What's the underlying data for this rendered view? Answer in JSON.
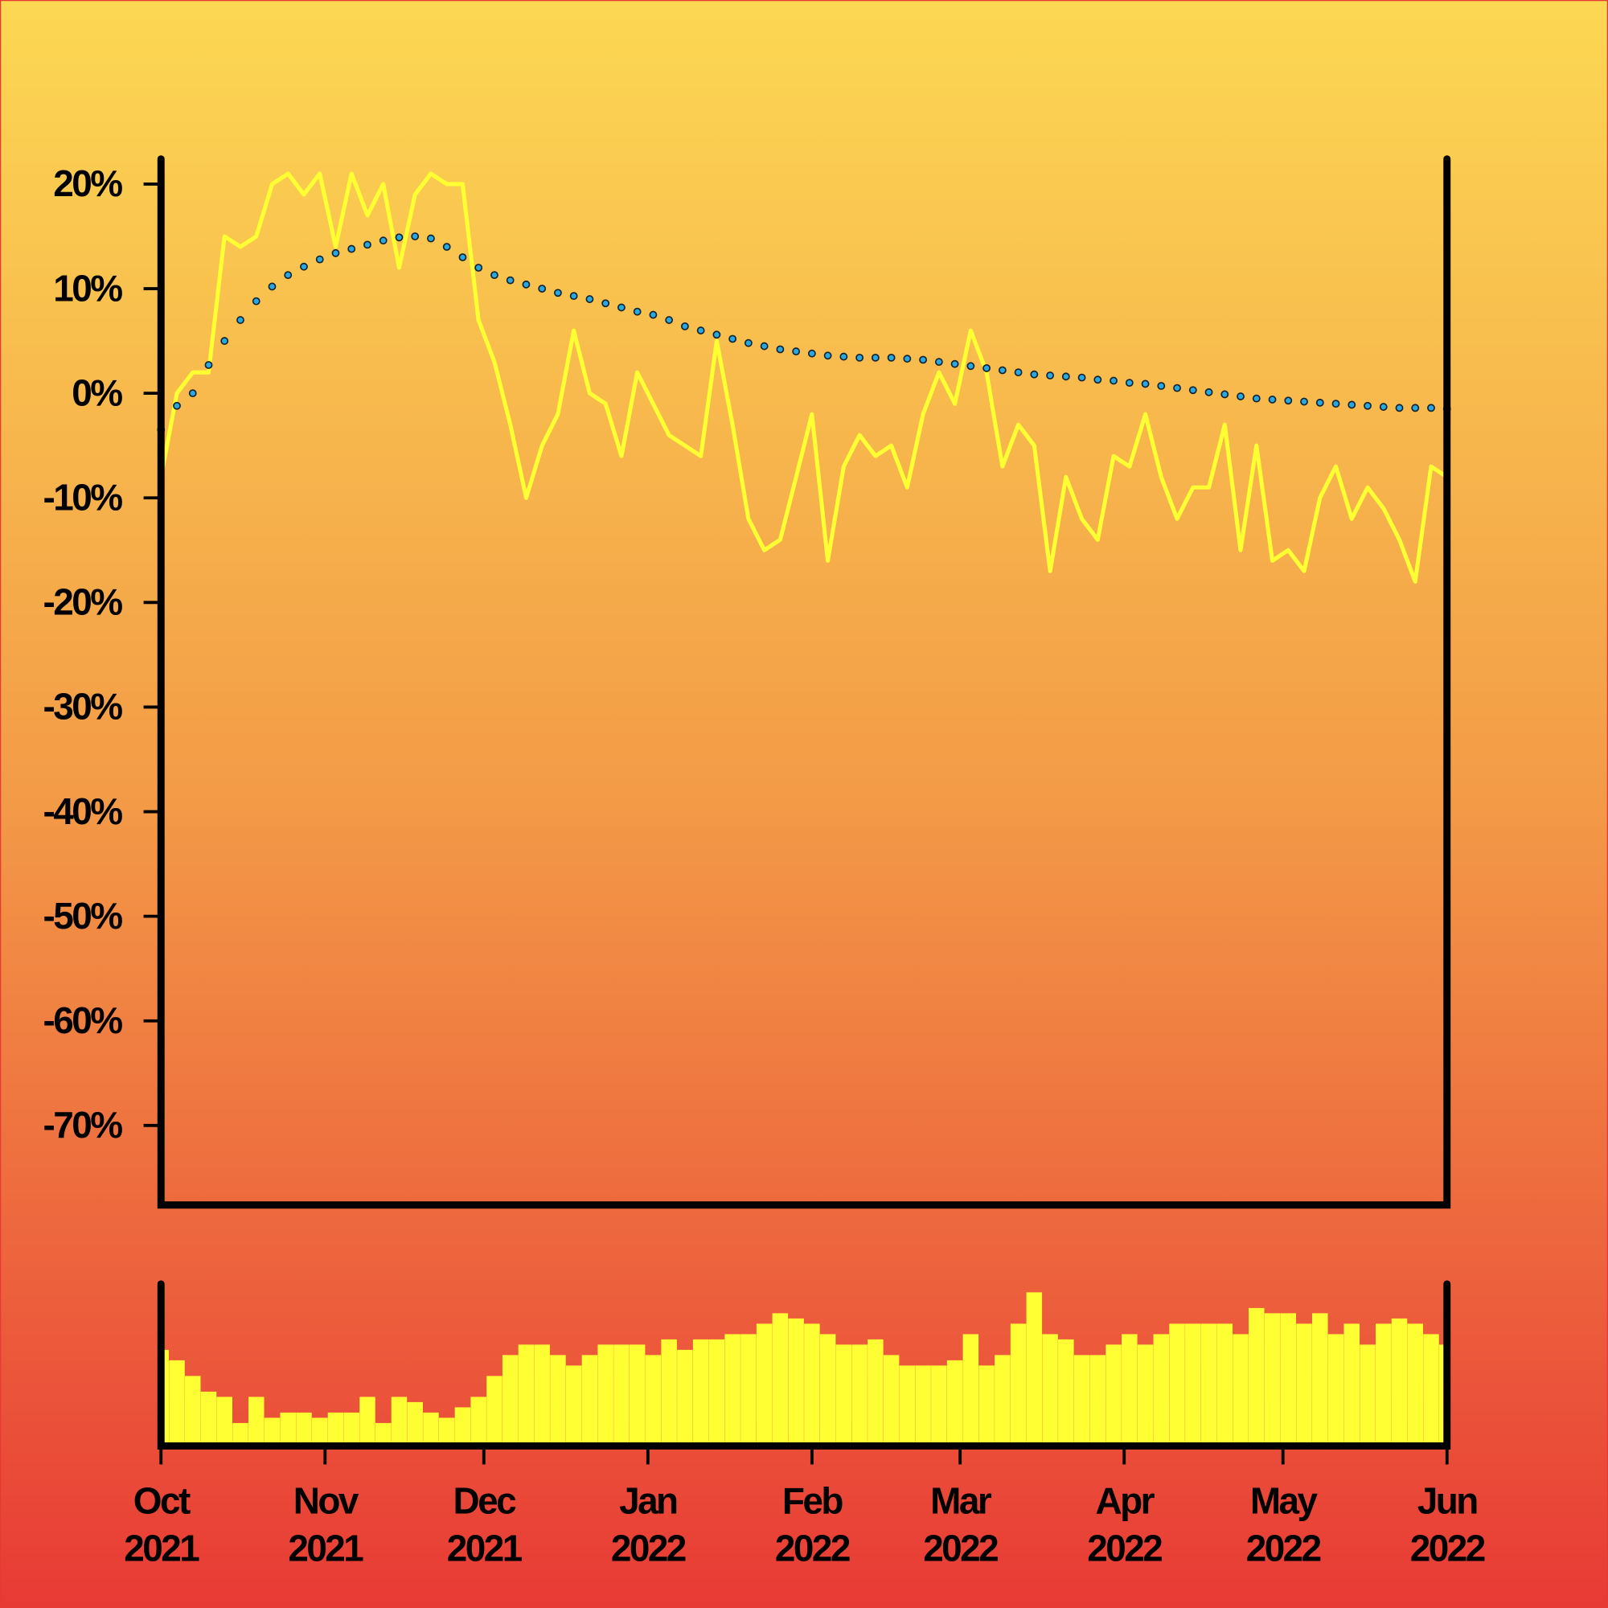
{
  "chart_data": [
    {
      "type": "line",
      "x": [
        0,
        3,
        6,
        9,
        12,
        15,
        18,
        21,
        24,
        27,
        30,
        33,
        36,
        39,
        42,
        45,
        48,
        51,
        54,
        57,
        60,
        63,
        66,
        69,
        72,
        75,
        78,
        81,
        84,
        87,
        90,
        93,
        96,
        99,
        102,
        105,
        108,
        111,
        114,
        117,
        120,
        123,
        126,
        129,
        132,
        135,
        138,
        141,
        144,
        147,
        150,
        153,
        156,
        159,
        162,
        165,
        168,
        171,
        174,
        177,
        180,
        183,
        186,
        189,
        192,
        195,
        198,
        201,
        204,
        207,
        210,
        213,
        216,
        219,
        222,
        225,
        228,
        231,
        234,
        237,
        240,
        243
      ],
      "xlim": [
        0,
        243
      ],
      "xticks": [
        {
          "value": 0,
          "label": "Oct 2021"
        },
        {
          "value": 31,
          "label": "Nov 2021"
        },
        {
          "value": 61,
          "label": "Dec 2021"
        },
        {
          "value": 92,
          "label": "Jan 2022"
        },
        {
          "value": 123,
          "label": "Feb 2022"
        },
        {
          "value": 151,
          "label": "Mar 2022"
        },
        {
          "value": 182,
          "label": "Apr 2022"
        },
        {
          "value": 212,
          "label": "May 2022"
        },
        {
          "value": 243,
          "label": "Jun 2022"
        }
      ],
      "ylim": [
        -77.6,
        22.4
      ],
      "yticks": [
        {
          "value": 20,
          "label": "20%"
        },
        {
          "value": 10,
          "label": "10%"
        },
        {
          "value": 0,
          "label": "0%"
        },
        {
          "value": -10,
          "label": "-10%"
        },
        {
          "value": -20,
          "label": "-20%"
        },
        {
          "value": -30,
          "label": "-30%"
        },
        {
          "value": -40,
          "label": "-40%"
        },
        {
          "value": -50,
          "label": "-50%"
        },
        {
          "value": -60,
          "label": "-60%"
        },
        {
          "value": -70,
          "label": "-70%"
        }
      ],
      "series": [
        {
          "color": "#ffff33",
          "style": "solid",
          "values": [
            -8,
            0,
            2,
            2,
            15,
            14,
            15,
            20,
            21,
            19,
            21,
            14,
            21,
            17,
            20,
            12,
            19,
            21,
            20,
            20,
            7,
            3,
            -3,
            -10,
            -5,
            -2,
            6,
            0,
            -1,
            -6,
            2,
            -1,
            -4,
            -5,
            -6,
            5,
            -3,
            -12,
            -15,
            -14,
            -8,
            -2,
            -16,
            -7,
            -4,
            -6,
            -5,
            -9,
            -2,
            2,
            -1,
            6,
            2,
            -7,
            -3,
            -5,
            -17,
            -8,
            -12,
            -14,
            -6,
            -7,
            -2,
            -8,
            -12,
            -9,
            -9,
            -3,
            -15,
            -5,
            -16,
            -15,
            -17,
            -10,
            -7,
            -12,
            -9,
            -11,
            -14,
            -18,
            -7,
            -8
          ]
        },
        {
          "color": "#29a8e0",
          "style": "dotted",
          "values": [
            -3.5,
            -1.2,
            0,
            2.7,
            5,
            7,
            8.8,
            10.2,
            11.3,
            12.1,
            12.8,
            13.4,
            13.8,
            14.2,
            14.6,
            14.9,
            15,
            14.8,
            14,
            13,
            12,
            11.3,
            10.8,
            10.4,
            10,
            9.6,
            9.3,
            9,
            8.6,
            8.2,
            7.8,
            7.5,
            7,
            6.4,
            6,
            5.6,
            5.2,
            4.8,
            4.5,
            4.2,
            4,
            3.8,
            3.6,
            3.5,
            3.4,
            3.4,
            3.4,
            3.3,
            3.2,
            3,
            2.8,
            2.6,
            2.4,
            2.2,
            2,
            1.8,
            1.7,
            1.6,
            1.5,
            1.3,
            1.2,
            1,
            0.9,
            0.7,
            0.5,
            0.3,
            0.1,
            -0.1,
            -0.3,
            -0.5,
            -0.6,
            -0.7,
            -0.8,
            -0.9,
            -1,
            -1.1,
            -1.2,
            -1.3,
            -1.4,
            -1.4,
            -1.4,
            -1.5
          ]
        }
      ]
    },
    {
      "type": "bar",
      "x": [
        0,
        3,
        6,
        9,
        12,
        15,
        18,
        21,
        24,
        27,
        30,
        33,
        36,
        39,
        42,
        45,
        48,
        51,
        54,
        57,
        60,
        63,
        66,
        69,
        72,
        75,
        78,
        81,
        84,
        87,
        90,
        93,
        96,
        99,
        102,
        105,
        108,
        111,
        114,
        117,
        120,
        123,
        126,
        129,
        132,
        135,
        138,
        141,
        144,
        147,
        150,
        153,
        156,
        159,
        162,
        165,
        168,
        171,
        174,
        177,
        180,
        183,
        186,
        189,
        192,
        195,
        198,
        201,
        204,
        207,
        210,
        213,
        216,
        219,
        222,
        225,
        228,
        231,
        234,
        237,
        240,
        243
      ],
      "xlim": [
        0,
        243
      ],
      "ylim": [
        0,
        155
      ],
      "color": "#ffff33",
      "values": [
        90,
        80,
        65,
        50,
        45,
        20,
        45,
        25,
        30,
        30,
        25,
        30,
        30,
        45,
        20,
        45,
        40,
        30,
        25,
        35,
        45,
        65,
        85,
        95,
        95,
        85,
        75,
        85,
        95,
        95,
        95,
        85,
        100,
        90,
        100,
        100,
        105,
        105,
        115,
        125,
        120,
        115,
        105,
        95,
        95,
        100,
        85,
        75,
        75,
        75,
        80,
        105,
        75,
        85,
        115,
        145,
        105,
        100,
        85,
        85,
        95,
        105,
        95,
        105,
        115,
        115,
        115,
        115,
        105,
        130,
        125,
        125,
        115,
        125,
        105,
        115,
        95,
        115,
        120,
        115,
        105,
        95
      ]
    }
  ]
}
